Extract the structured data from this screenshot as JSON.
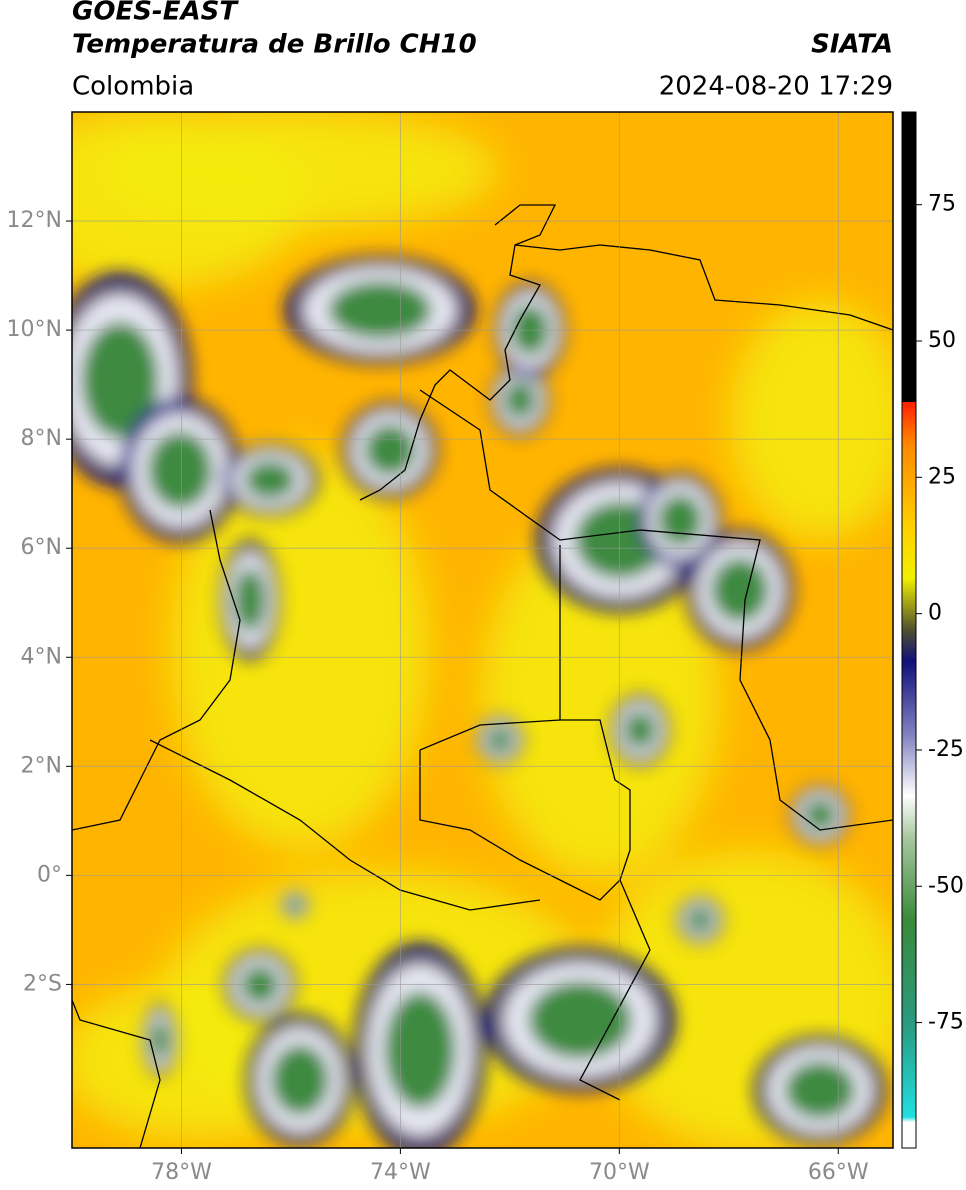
{
  "header": {
    "title": "GOES-EAST",
    "subtitle": "Temperatura de Brillo CH10",
    "region": "Colombia",
    "source": "SIATA",
    "datetime": "2024-08-20 17:29"
  },
  "map": {
    "lonlim": [
      -80,
      -65
    ],
    "latlim": [
      -5,
      14
    ],
    "lon_ticks": [
      {
        "value": -78,
        "label": "78°W"
      },
      {
        "value": -74,
        "label": "74°W"
      },
      {
        "value": -70,
        "label": "70°W"
      },
      {
        "value": -66,
        "label": "66°W"
      }
    ],
    "lat_ticks": [
      {
        "value": 12,
        "label": "12°N"
      },
      {
        "value": 10,
        "label": "10°N"
      },
      {
        "value": 8,
        "label": "8°N"
      },
      {
        "value": 6,
        "label": "6°N"
      },
      {
        "value": 4,
        "label": "4°N"
      },
      {
        "value": 2,
        "label": "2°N"
      },
      {
        "value": 0,
        "label": "0°"
      },
      {
        "value": -2,
        "label": "2°S"
      }
    ]
  },
  "colorbar": {
    "lim": [
      -98,
      92
    ],
    "ticks": [
      75,
      50,
      25,
      0,
      -25,
      -50,
      -75
    ]
  }
}
